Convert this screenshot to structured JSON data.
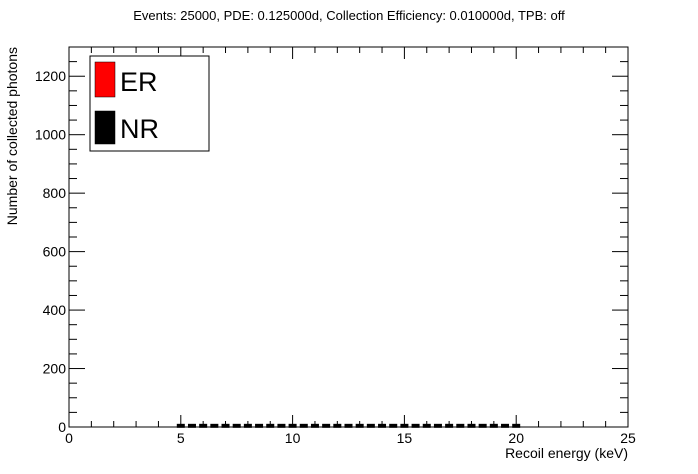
{
  "chart_data": {
    "type": "scatter",
    "title": "Events: 25000, PDE: 0.125000d, Collection Efficiency: 0.010000d, TPB: off",
    "xlabel": "Recoil energy (keV)",
    "ylabel": "Number of collected photons",
    "xlim": [
      0,
      25
    ],
    "ylim": [
      0,
      1300
    ],
    "x_ticks": [
      0,
      5,
      10,
      15,
      20,
      25
    ],
    "x_tick_labels": [
      "0",
      "5",
      "10",
      "15",
      "20",
      "25"
    ],
    "y_ticks": [
      0,
      200,
      400,
      600,
      800,
      1000,
      1200
    ],
    "y_tick_labels": [
      "0",
      "200",
      "400",
      "600",
      "800",
      "1000",
      "1200"
    ],
    "grid": false,
    "legend_position": "top-left",
    "series": [
      {
        "name": "ER",
        "color": "#ff0000",
        "x": [],
        "y": []
      },
      {
        "name": "NR",
        "color": "#000000",
        "x": [
          5,
          5.5,
          6,
          6.5,
          7,
          7.5,
          8,
          8.5,
          9,
          9.5,
          10,
          10.5,
          11,
          11.5,
          12,
          12.5,
          13,
          13.5,
          14,
          14.5,
          15,
          15.5,
          16,
          16.5,
          17,
          17.5,
          18,
          18.5,
          19,
          19.5,
          20
        ],
        "y": [
          4,
          4,
          4,
          4,
          4,
          4,
          4,
          4,
          4,
          4,
          4,
          4,
          4,
          4,
          4,
          4,
          4,
          4,
          4,
          4,
          4,
          4,
          4,
          4,
          4,
          4,
          4,
          4,
          4,
          4,
          4
        ]
      }
    ]
  }
}
